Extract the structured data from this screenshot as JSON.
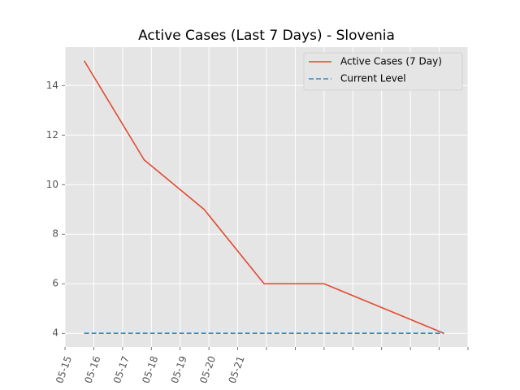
{
  "chart_data": {
    "type": "line",
    "title": "Active Cases (Last 7 Days) - Slovenia",
    "xlabel": "",
    "ylabel": "",
    "x": [
      "2020-05-15 16:00",
      "2020-05-17 18:00",
      "2020-05-19 20:00",
      "2020-05-21 22:00",
      "2020-05-24 00:00",
      "2020-05-26 02:00",
      "2020-05-28 04:00"
    ],
    "x_tick_labels": [
      "05-15",
      "05-16",
      "05-17",
      "05-18",
      "05-19",
      "05-20",
      "05-21",
      "",
      "",
      "",
      "",
      "",
      "",
      "",
      ""
    ],
    "y_ticks": [
      4,
      6,
      8,
      10,
      12,
      14
    ],
    "ylim": [
      3.45,
      15.55
    ],
    "series": [
      {
        "name": "Active Cases (7 Day)",
        "values": [
          15,
          11,
          9,
          6,
          6,
          5,
          4
        ],
        "color": "#E24A33",
        "style": "solid"
      },
      {
        "name": "Current Level",
        "values": [
          4,
          4,
          4,
          4,
          4,
          4,
          4
        ],
        "color": "#348ABD",
        "style": "dashed"
      }
    ],
    "grid": true,
    "legend_position": "top-right",
    "background": "#E5E5E5"
  }
}
